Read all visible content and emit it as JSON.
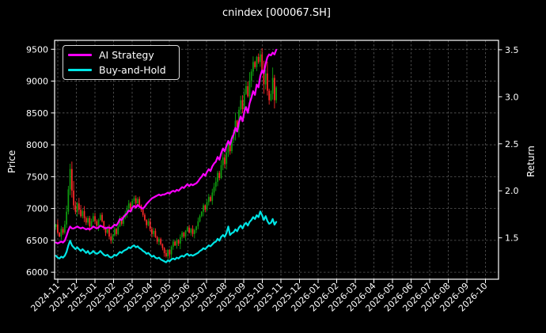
{
  "window": {
    "title": "cnindex [000067.SH]"
  },
  "chart_data": {
    "type": "candlestick",
    "title": "cnindex [000067.SH]",
    "ylabel_left": "Price",
    "ylabel_right": "Return",
    "x_tick_labels": [
      "2024-11",
      "2024-12",
      "2025-01",
      "2025-02",
      "2025-03",
      "2025-04",
      "2025-05",
      "2025-06",
      "2025-07",
      "2025-08",
      "2025-09",
      "2025-10",
      "2025-11",
      "2025-12",
      "2026-01",
      "2026-02",
      "2026-03",
      "2026-04",
      "2026-05",
      "2026-06",
      "2026-07",
      "2026-08",
      "2026-09",
      "2026-10"
    ],
    "y_left_ticks": [
      6000,
      6500,
      7000,
      7500,
      8000,
      8500,
      9000,
      9500
    ],
    "y_right_ticks": [
      "1.5",
      "2.0",
      "2.5",
      "3.0",
      "3.5"
    ],
    "y_left_range": [
      5890,
      9640
    ],
    "y_right_range": [
      1.06,
      3.6
    ],
    "x_range_months": [
      -0.17,
      23.7
    ],
    "grid": true,
    "legend_position": "upper-left",
    "colors": {
      "background": "#000000",
      "text": "#ffffff",
      "grid": "#5a5a5a",
      "frame": "#ffffff",
      "candle_up": "#0fa00f",
      "candle_down": "#ff2a2a",
      "ai_strategy": "#ff00ff",
      "buy_and_hold": "#00e5e5"
    },
    "legend": {
      "entries": [
        {
          "label": "AI Strategy",
          "color": "#ff00ff"
        },
        {
          "label": "Buy-and-Hold",
          "color": "#00e5e5"
        }
      ]
    },
    "candles": {
      "start_month": -0.1,
      "end_month": 11.75,
      "closes": [
        6750,
        6620,
        6560,
        6680,
        6620,
        6750,
        6950,
        7300,
        7620,
        7280,
        7050,
        6950,
        7080,
        6980,
        6880,
        6960,
        6850,
        6780,
        6850,
        6720,
        6800,
        6880,
        6800,
        6730,
        6820,
        6900,
        6800,
        6700,
        6620,
        6680,
        6560,
        6500,
        6580,
        6680,
        6600,
        6720,
        6820,
        6760,
        6860,
        6920,
        7000,
        7080,
        7000,
        7120,
        7160,
        7080,
        7150,
        7050,
        6980,
        6900,
        6820,
        6740,
        6800,
        6680,
        6600,
        6650,
        6550,
        6480,
        6520,
        6440,
        6380,
        6300,
        6250,
        6350,
        6280,
        6400,
        6480,
        6420,
        6500,
        6450,
        6550,
        6620,
        6560,
        6650,
        6700,
        6620,
        6680,
        6600,
        6660,
        6720,
        6800,
        6880,
        6950,
        7050,
        6980,
        7100,
        7180,
        7120,
        7250,
        7340,
        7420,
        7560,
        7480,
        7680,
        7800,
        7700,
        7880,
        8020,
        7900,
        8080,
        8200,
        8380,
        8280,
        8550,
        8700,
        8560,
        8800,
        8920,
        8760,
        9000,
        9150,
        9300,
        9220,
        9380,
        9300,
        9420,
        9180,
        8950,
        9120,
        8850,
        8700,
        8800,
        9050,
        8700,
        8900
      ]
    },
    "series": [
      {
        "name": "AI Strategy",
        "axis": "right",
        "color": "#ff00ff",
        "values": [
          1.45,
          1.44,
          1.45,
          1.46,
          1.45,
          1.47,
          1.52,
          1.58,
          1.62,
          1.6,
          1.6,
          1.61,
          1.62,
          1.61,
          1.6,
          1.61,
          1.6,
          1.59,
          1.6,
          1.59,
          1.6,
          1.62,
          1.61,
          1.6,
          1.61,
          1.63,
          1.62,
          1.61,
          1.6,
          1.61,
          1.61,
          1.6,
          1.62,
          1.64,
          1.63,
          1.66,
          1.7,
          1.69,
          1.72,
          1.74,
          1.76,
          1.79,
          1.78,
          1.82,
          1.84,
          1.82,
          1.85,
          1.83,
          1.82,
          1.81,
          1.83,
          1.86,
          1.88,
          1.9,
          1.92,
          1.93,
          1.94,
          1.95,
          1.96,
          1.95,
          1.96,
          1.96,
          1.97,
          1.98,
          1.97,
          1.99,
          2.0,
          1.99,
          2.01,
          2.0,
          2.02,
          2.04,
          2.03,
          2.05,
          2.07,
          2.05,
          2.07,
          2.06,
          2.07,
          2.08,
          2.1,
          2.13,
          2.15,
          2.18,
          2.16,
          2.2,
          2.23,
          2.21,
          2.26,
          2.29,
          2.31,
          2.36,
          2.33,
          2.4,
          2.45,
          2.42,
          2.48,
          2.53,
          2.49,
          2.56,
          2.6,
          2.67,
          2.63,
          2.73,
          2.79,
          2.74,
          2.84,
          2.89,
          2.83,
          2.93,
          2.99,
          3.06,
          3.02,
          3.13,
          3.1,
          3.22,
          3.28,
          3.25,
          3.35,
          3.42,
          3.45,
          3.44,
          3.47,
          3.45,
          3.5
        ]
      },
      {
        "name": "Buy-and-Hold",
        "axis": "right",
        "color": "#00e5e5",
        "values": [
          1.31,
          1.29,
          1.28,
          1.3,
          1.29,
          1.31,
          1.35,
          1.42,
          1.47,
          1.42,
          1.4,
          1.38,
          1.4,
          1.38,
          1.36,
          1.38,
          1.36,
          1.34,
          1.36,
          1.33,
          1.34,
          1.36,
          1.34,
          1.33,
          1.34,
          1.36,
          1.34,
          1.32,
          1.31,
          1.32,
          1.3,
          1.29,
          1.3,
          1.32,
          1.31,
          1.33,
          1.35,
          1.34,
          1.36,
          1.37,
          1.38,
          1.4,
          1.39,
          1.41,
          1.42,
          1.4,
          1.41,
          1.39,
          1.38,
          1.36,
          1.35,
          1.33,
          1.34,
          1.32,
          1.3,
          1.31,
          1.29,
          1.28,
          1.29,
          1.27,
          1.26,
          1.25,
          1.24,
          1.26,
          1.25,
          1.27,
          1.28,
          1.27,
          1.29,
          1.28,
          1.3,
          1.31,
          1.3,
          1.32,
          1.33,
          1.31,
          1.32,
          1.31,
          1.32,
          1.33,
          1.34,
          1.36,
          1.37,
          1.39,
          1.38,
          1.4,
          1.42,
          1.41,
          1.43,
          1.45,
          1.46,
          1.49,
          1.47,
          1.51,
          1.53,
          1.51,
          1.55,
          1.62,
          1.53,
          1.55,
          1.56,
          1.59,
          1.57,
          1.61,
          1.63,
          1.6,
          1.64,
          1.66,
          1.63,
          1.67,
          1.69,
          1.72,
          1.7,
          1.74,
          1.72,
          1.78,
          1.74,
          1.69,
          1.73,
          1.68,
          1.65,
          1.66,
          1.7,
          1.64,
          1.67
        ]
      }
    ]
  }
}
